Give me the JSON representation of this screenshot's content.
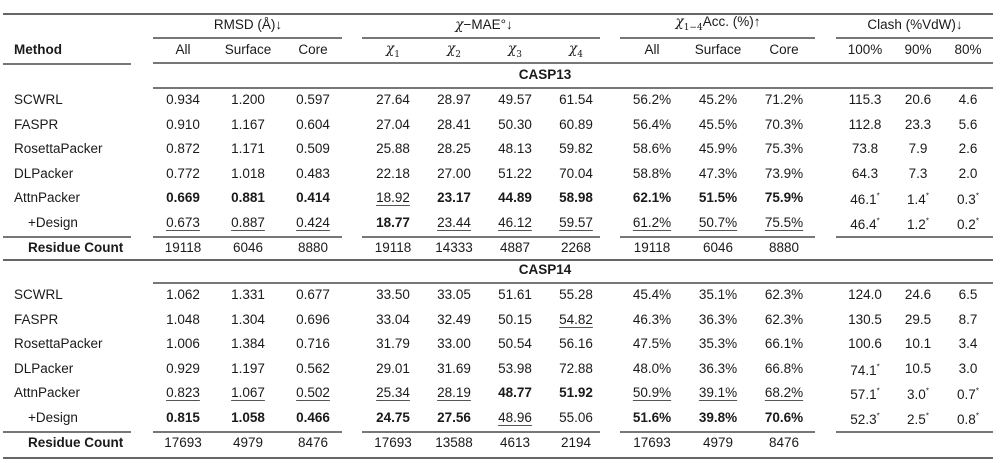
{
  "header": {
    "method_label": "Method",
    "groups": [
      {
        "label": "RMSD (Å)↓"
      },
      {
        "sym": "χ",
        "label": "−MAE°↓"
      },
      {
        "sym": "χ",
        "sub": "1−4",
        "label": "Acc. (%)↑"
      },
      {
        "label": "Clash (%VdW)↓"
      }
    ],
    "subcols": [
      {
        "label": "All"
      },
      {
        "label": "Surface"
      },
      {
        "label": "Core"
      },
      {
        "sym": "χ",
        "sub": "1"
      },
      {
        "sym": "χ",
        "sub": "2"
      },
      {
        "sym": "χ",
        "sub": "3"
      },
      {
        "sym": "χ",
        "sub": "4"
      },
      {
        "label": "All"
      },
      {
        "label": "Surface"
      },
      {
        "label": "Core"
      },
      {
        "label": "100%"
      },
      {
        "label": "90%"
      },
      {
        "label": "80%"
      }
    ]
  },
  "sections": [
    {
      "title": "CASP13",
      "rows": [
        {
          "method": "SCWRL",
          "values": [
            "0.934",
            "1.200",
            "0.597",
            "27.64",
            "28.97",
            "49.57",
            "61.54",
            "56.2%",
            "45.2%",
            "71.2%",
            "115.3",
            "20.6",
            "4.6"
          ],
          "fmt": "nnnnnnnnnnnnn"
        },
        {
          "method": "FASPR",
          "values": [
            "0.910",
            "1.167",
            "0.604",
            "27.04",
            "28.41",
            "50.30",
            "60.89",
            "56.4%",
            "45.5%",
            "70.3%",
            "112.8",
            "23.3",
            "5.6"
          ],
          "fmt": "nnnnnnnnnnnnn"
        },
        {
          "method": "RosettaPacker",
          "values": [
            "0.872",
            "1.171",
            "0.509",
            "25.88",
            "28.25",
            "48.13",
            "59.82",
            "58.6%",
            "45.9%",
            "75.3%",
            "73.8",
            "7.9",
            "2.6"
          ],
          "fmt": "nnnnnnnnnnnnn"
        },
        {
          "method": "DLPacker",
          "values": [
            "0.772",
            "1.018",
            "0.483",
            "22.18",
            "27.00",
            "51.22",
            "70.04",
            "58.8%",
            "47.3%",
            "73.9%",
            "64.3",
            "7.3",
            "2.0"
          ],
          "fmt": "nnnnnnnnnnnnn"
        },
        {
          "method": "AttnPacker",
          "values": [
            "0.669",
            "0.881",
            "0.414",
            "18.92",
            "23.17",
            "44.89",
            "58.98",
            "62.1%",
            "51.5%",
            "75.9%",
            "46.1*",
            "1.4*",
            "0.3*"
          ],
          "fmt": "bbbubbbbbbnnn"
        },
        {
          "method": "+Design",
          "indent": true,
          "values": [
            "0.673",
            "0.887",
            "0.424",
            "18.77",
            "23.44",
            "46.12",
            "59.57",
            "61.2%",
            "50.7%",
            "75.5%",
            "46.4*",
            "1.2*",
            "0.2*"
          ],
          "fmt": "uuubuuuuuunnn"
        }
      ],
      "count": {
        "label": "Residue Count",
        "values": [
          "19118",
          "6046",
          "8880",
          "19118",
          "14333",
          "4887",
          "2268",
          "19118",
          "6046",
          "8880",
          "",
          "",
          ""
        ]
      }
    },
    {
      "title": "CASP14",
      "rows": [
        {
          "method": "SCWRL",
          "values": [
            "1.062",
            "1.331",
            "0.677",
            "33.50",
            "33.05",
            "51.61",
            "55.28",
            "45.4%",
            "35.1%",
            "62.3%",
            "124.0",
            "24.6",
            "6.5"
          ],
          "fmt": "nnnnnnnnnnnnn"
        },
        {
          "method": "FASPR",
          "values": [
            "1.048",
            "1.304",
            "0.696",
            "33.04",
            "32.49",
            "50.15",
            "54.82",
            "46.3%",
            "36.3%",
            "62.3%",
            "130.5",
            "29.5",
            "8.7"
          ],
          "fmt": "nnnnnnunnnnnn"
        },
        {
          "method": "RosettaPacker",
          "values": [
            "1.006",
            "1.384",
            "0.716",
            "31.79",
            "33.00",
            "50.54",
            "56.16",
            "47.5%",
            "35.3%",
            "66.1%",
            "100.6",
            "10.1",
            "3.4"
          ],
          "fmt": "nnnnnnnnnnnnn"
        },
        {
          "method": "DLPacker",
          "values": [
            "0.929",
            "1.197",
            "0.562",
            "29.01",
            "31.69",
            "53.98",
            "72.88",
            "48.0%",
            "36.3%",
            "66.8%",
            "74.1*",
            "10.5",
            "3.0"
          ],
          "fmt": "nnnnnnnnnnnnn"
        },
        {
          "method": "AttnPacker",
          "values": [
            "0.823",
            "1.067",
            "0.502",
            "25.34",
            "28.19",
            "48.77",
            "51.92",
            "50.9%",
            "39.1%",
            "68.2%",
            "57.1*",
            "3.0*",
            "0.7*"
          ],
          "fmt": "uuuuubbuuunnn"
        },
        {
          "method": "+Design",
          "indent": true,
          "values": [
            "0.815",
            "1.058",
            "0.466",
            "24.75",
            "27.56",
            "48.96",
            "55.06",
            "51.6%",
            "39.8%",
            "70.6%",
            "52.3*",
            "2.5*",
            "0.8*"
          ],
          "fmt": "bbbbbunbbbnnn"
        }
      ],
      "count": {
        "label": "Residue Count",
        "values": [
          "17693",
          "4979",
          "8476",
          "17693",
          "13588",
          "4613",
          "2194",
          "17693",
          "4979",
          "8476",
          "",
          "",
          ""
        ]
      }
    }
  ]
}
